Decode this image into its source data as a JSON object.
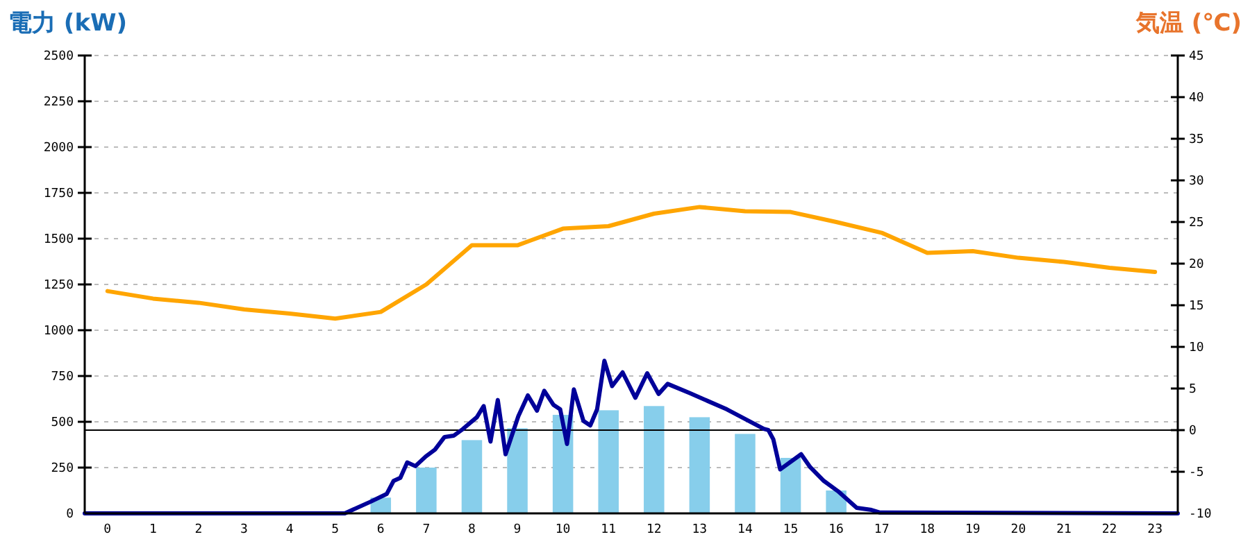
{
  "chart_data": {
    "type": "bar",
    "ylabel": "電力 (kW)",
    "y2label": "気温 (℃)",
    "x": [
      0,
      1,
      2,
      3,
      4,
      5,
      6,
      7,
      8,
      9,
      10,
      11,
      12,
      13,
      14,
      15,
      16,
      17,
      18,
      19,
      20,
      21,
      22,
      23
    ],
    "xlim": [
      -0.5,
      23.5
    ],
    "xticks": [
      0,
      1,
      2,
      3,
      4,
      5,
      6,
      7,
      8,
      9,
      10,
      11,
      12,
      13,
      14,
      15,
      16,
      17,
      18,
      19,
      20,
      21,
      22,
      23
    ],
    "ylim": [
      0,
      2500
    ],
    "yticks": [
      0,
      250,
      500,
      750,
      1000,
      1250,
      1500,
      1750,
      2000,
      2250,
      2500
    ],
    "y2lim": [
      -10,
      45
    ],
    "y2ticks": [
      -10,
      -5,
      0,
      5,
      10,
      15,
      20,
      25,
      30,
      35,
      40,
      45
    ],
    "grid": "y",
    "ref_lines": [
      {
        "axis": "y2",
        "value": 0,
        "color": "#000000"
      }
    ],
    "series": [
      {
        "type": "bar",
        "color": "#87ceeb",
        "values": [
          0,
          0,
          0,
          0,
          0,
          0,
          86,
          250,
          400,
          465,
          538,
          563,
          586,
          525,
          434,
          303,
          125,
          0,
          0,
          0,
          0,
          0,
          0,
          0
        ]
      },
      {
        "type": "line",
        "color": "#000099",
        "x": [
          -0.5,
          5.21,
          5.77,
          6.13,
          6.28,
          6.43,
          6.58,
          6.76,
          6.99,
          7.19,
          7.4,
          7.6,
          7.8,
          8.11,
          8.26,
          8.41,
          8.57,
          8.74,
          9.02,
          9.23,
          9.43,
          9.59,
          9.79,
          9.94,
          10.09,
          10.24,
          10.45,
          10.6,
          10.75,
          10.91,
          11.08,
          11.31,
          11.59,
          11.85,
          12.1,
          12.3,
          12.79,
          13.6,
          14.41,
          14.51,
          14.62,
          14.77,
          15.23,
          15.43,
          15.73,
          16.04,
          16.45,
          16.75,
          16.95,
          23.5
        ],
        "values": [
          0,
          0,
          63,
          106,
          177,
          194,
          278,
          258,
          311,
          348,
          417,
          424,
          460,
          525,
          586,
          392,
          619,
          323,
          530,
          644,
          561,
          669,
          593,
          568,
          379,
          677,
          505,
          480,
          568,
          833,
          695,
          770,
          631,
          765,
          652,
          707,
          656,
          568,
          462,
          455,
          404,
          240,
          323,
          252,
          177,
          121,
          30,
          20,
          5,
          0
        ]
      },
      {
        "type": "line",
        "color": "#ffa500",
        "axis": "y2",
        "x": [
          0,
          1,
          2,
          3,
          4,
          5,
          6,
          7,
          8,
          9,
          10,
          11,
          12,
          13,
          14,
          15,
          16,
          17,
          18,
          19,
          20,
          21,
          22,
          23
        ],
        "values": [
          16.7,
          15.8,
          15.3,
          14.5,
          14.0,
          13.4,
          14.2,
          17.5,
          22.2,
          22.2,
          24.2,
          24.5,
          26.0,
          26.8,
          26.3,
          26.2,
          25.0,
          23.7,
          21.3,
          21.5,
          20.7,
          20.2,
          19.5,
          19.0
        ]
      }
    ]
  }
}
